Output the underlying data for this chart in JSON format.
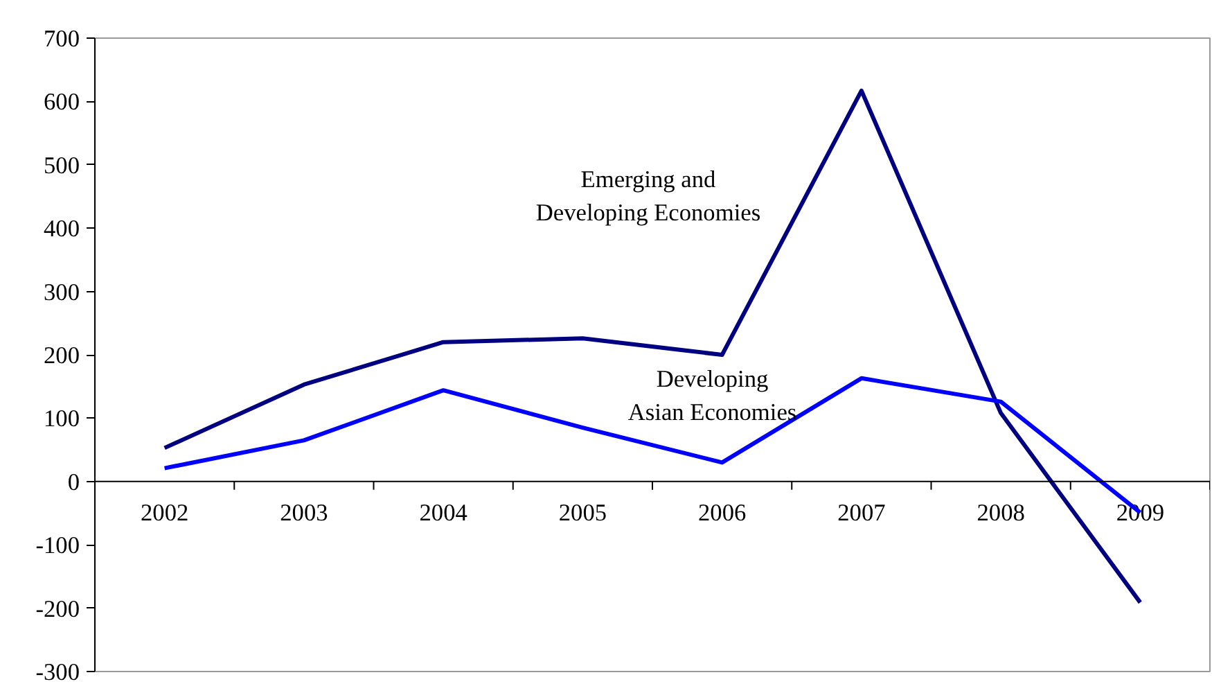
{
  "chart_data": {
    "type": "line",
    "categories": [
      "2002",
      "2003",
      "2004",
      "2005",
      "2006",
      "2007",
      "2008",
      "2009"
    ],
    "series": [
      {
        "name": "Emerging and\nDeveloping Economies",
        "color": "#000080",
        "values": [
          53,
          153,
          220,
          226,
          200,
          617,
          108,
          -191
        ]
      },
      {
        "name": "Developing\nAsian Economies",
        "color": "#0000ff",
        "values": [
          21,
          65,
          144,
          85,
          30,
          163,
          126,
          -49
        ]
      }
    ],
    "ylim": [
      -300,
      700
    ],
    "yticks": [
      -300,
      -200,
      -100,
      0,
      100,
      200,
      300,
      400,
      500,
      600,
      700
    ],
    "grid": false,
    "marker": "none",
    "line_style": "solid"
  }
}
